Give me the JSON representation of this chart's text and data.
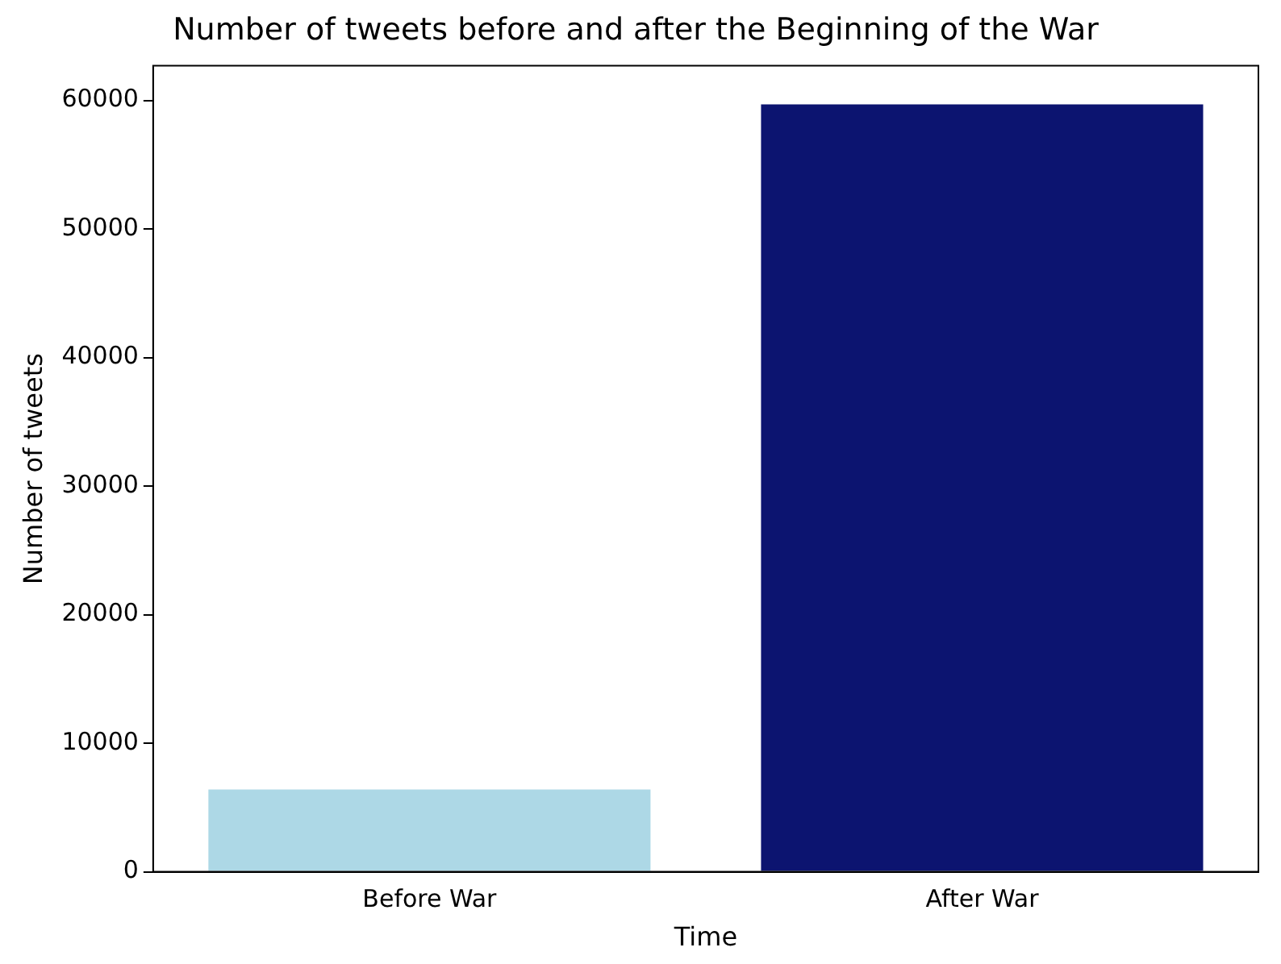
{
  "chart_data": {
    "type": "bar",
    "title": "Number of tweets before and after the Beginning of the War",
    "xlabel": "Time",
    "ylabel": "Number of tweets",
    "categories": [
      "Before War",
      "After War"
    ],
    "values": [
      6400,
      59700
    ],
    "colors": [
      "#add8e6",
      "#0c1470"
    ],
    "ylim": [
      0,
      62700
    ],
    "yticks": [
      0,
      10000,
      20000,
      30000,
      40000,
      50000,
      60000
    ],
    "grid": false,
    "legend": false
  }
}
